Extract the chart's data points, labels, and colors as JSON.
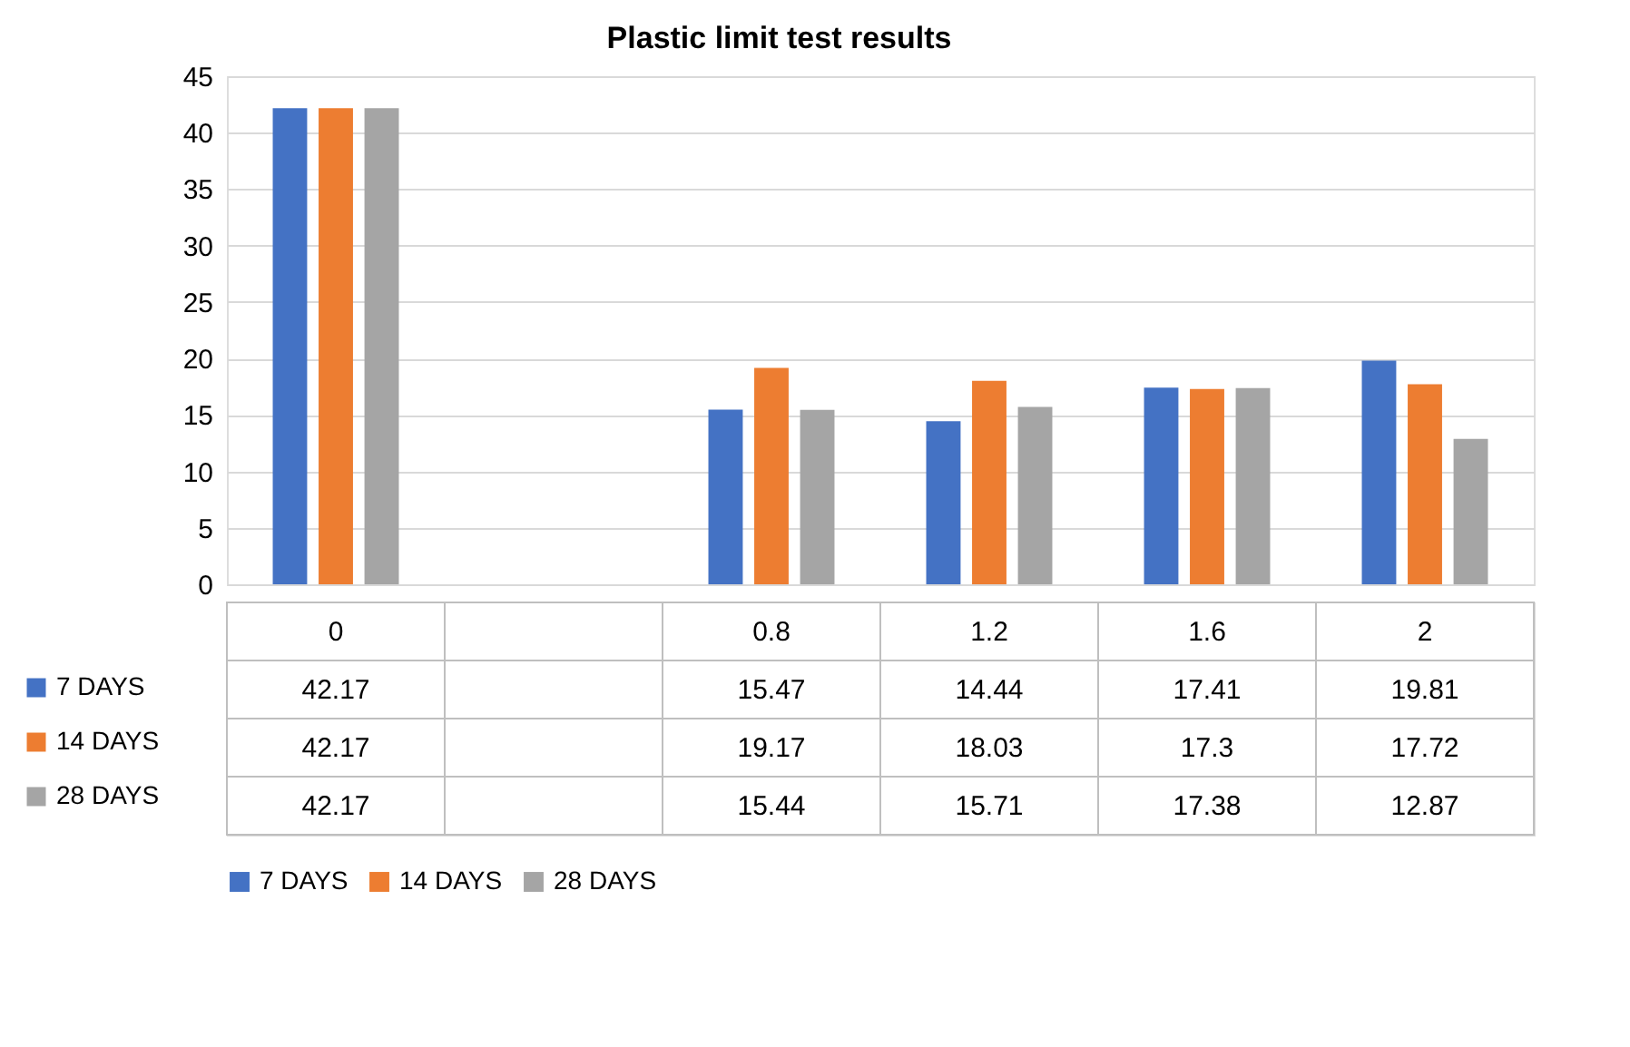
{
  "chart_data": {
    "type": "bar",
    "title": "Plastic limit test results",
    "categories": [
      "0",
      null,
      "0.8",
      "1.2",
      "1.6",
      "2"
    ],
    "series": [
      {
        "name": "7 DAYS",
        "color": "#4472c4",
        "values": [
          42.17,
          null,
          15.47,
          14.44,
          17.41,
          19.81
        ]
      },
      {
        "name": "14 DAYS",
        "color": "#ed7d31",
        "values": [
          42.17,
          null,
          19.17,
          18.03,
          17.3,
          17.72
        ]
      },
      {
        "name": "28 DAYS",
        "color": "#a5a5a5",
        "values": [
          42.17,
          null,
          15.44,
          15.71,
          17.38,
          12.87
        ]
      }
    ],
    "ylim": [
      0,
      45
    ],
    "yticks": [
      0,
      5,
      10,
      15,
      20,
      25,
      30,
      35,
      40,
      45
    ],
    "grid": "y",
    "legend": "bottom",
    "data_labels": true
  }
}
